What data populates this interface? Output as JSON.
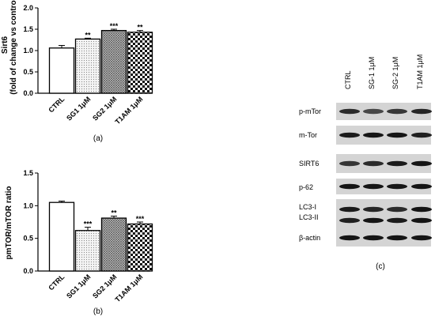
{
  "chart_data": [
    {
      "type": "bar",
      "panel_label": "(a)",
      "ylabel_line1": "Sirt6",
      "ylabel_line2": "(fold of change vs control)",
      "ylim": [
        0,
        2.0
      ],
      "yticks": [
        "0.0",
        "0.5",
        "1.0",
        "1.5",
        "2.0"
      ],
      "categories": [
        "CTRL",
        "SG1 1μM",
        "SG2 1μM",
        "T1AM 1μM"
      ],
      "values": [
        1.06,
        1.27,
        1.47,
        1.43
      ],
      "errors": [
        0.06,
        0.02,
        0.03,
        0.04
      ],
      "significance": [
        "",
        "**",
        "***",
        "**"
      ],
      "fills": [
        "solid-white",
        "dots",
        "crosshatch-dense",
        "checker"
      ]
    },
    {
      "type": "bar",
      "panel_label": "(b)",
      "ylabel": "pmTOR/mTOR ratio",
      "ylim": [
        0,
        1.5
      ],
      "yticks": [
        "0.0",
        "0.5",
        "1.0",
        "1.5"
      ],
      "categories": [
        "CTRL",
        "SG1 1μM",
        "SG2 1μM",
        "T1AM 1μM"
      ],
      "values": [
        1.05,
        0.62,
        0.81,
        0.72
      ],
      "errors": [
        0.02,
        0.05,
        0.03,
        0.03
      ],
      "significance": [
        "",
        "***",
        "**",
        "***"
      ],
      "fills": [
        "solid-white",
        "dots",
        "crosshatch-dense",
        "checker"
      ]
    }
  ],
  "blot": {
    "panel_label": "(c)",
    "lanes": [
      "CTRL",
      "SG-1 1μM",
      "SG-2 1μM",
      "T1AM  1μM"
    ],
    "rows": [
      {
        "label": "p-mTor",
        "intensity": [
          0.7,
          0.45,
          0.6,
          0.75
        ]
      },
      {
        "label": "m-Tor",
        "intensity": [
          0.85,
          0.9,
          0.9,
          0.8
        ]
      },
      {
        "label": "SIRT6",
        "intensity": [
          0.6,
          0.7,
          0.85,
          0.9
        ]
      },
      {
        "label": "p-62",
        "intensity": [
          0.9,
          0.9,
          0.88,
          0.9
        ]
      },
      {
        "label": "LC3-I",
        "intensity": [
          0.85,
          0.75,
          0.7,
          0.9
        ]
      },
      {
        "label": "LC3-II",
        "intensity": [
          0.8,
          0.9,
          0.85,
          0.9
        ]
      },
      {
        "label": "β-actin",
        "intensity": [
          0.9,
          0.9,
          0.9,
          0.9
        ]
      }
    ]
  }
}
